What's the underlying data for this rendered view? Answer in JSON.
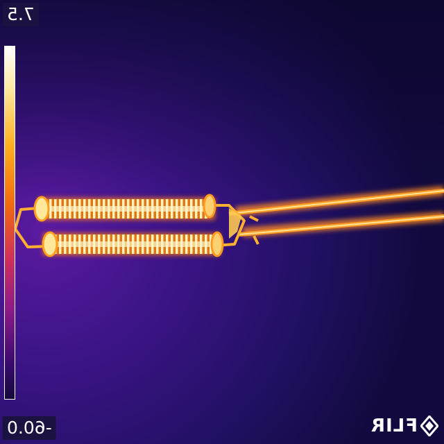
{
  "image": {
    "scale_max": "7.5",
    "scale_min": "-60.0",
    "logo_text": "FLIR",
    "palette": [
      "#ffffff",
      "#ffe18a",
      "#ffb020",
      "#f06a10",
      "#d0305a",
      "#8a1a8a",
      "#3a0a70",
      "#140a3a"
    ]
  }
}
